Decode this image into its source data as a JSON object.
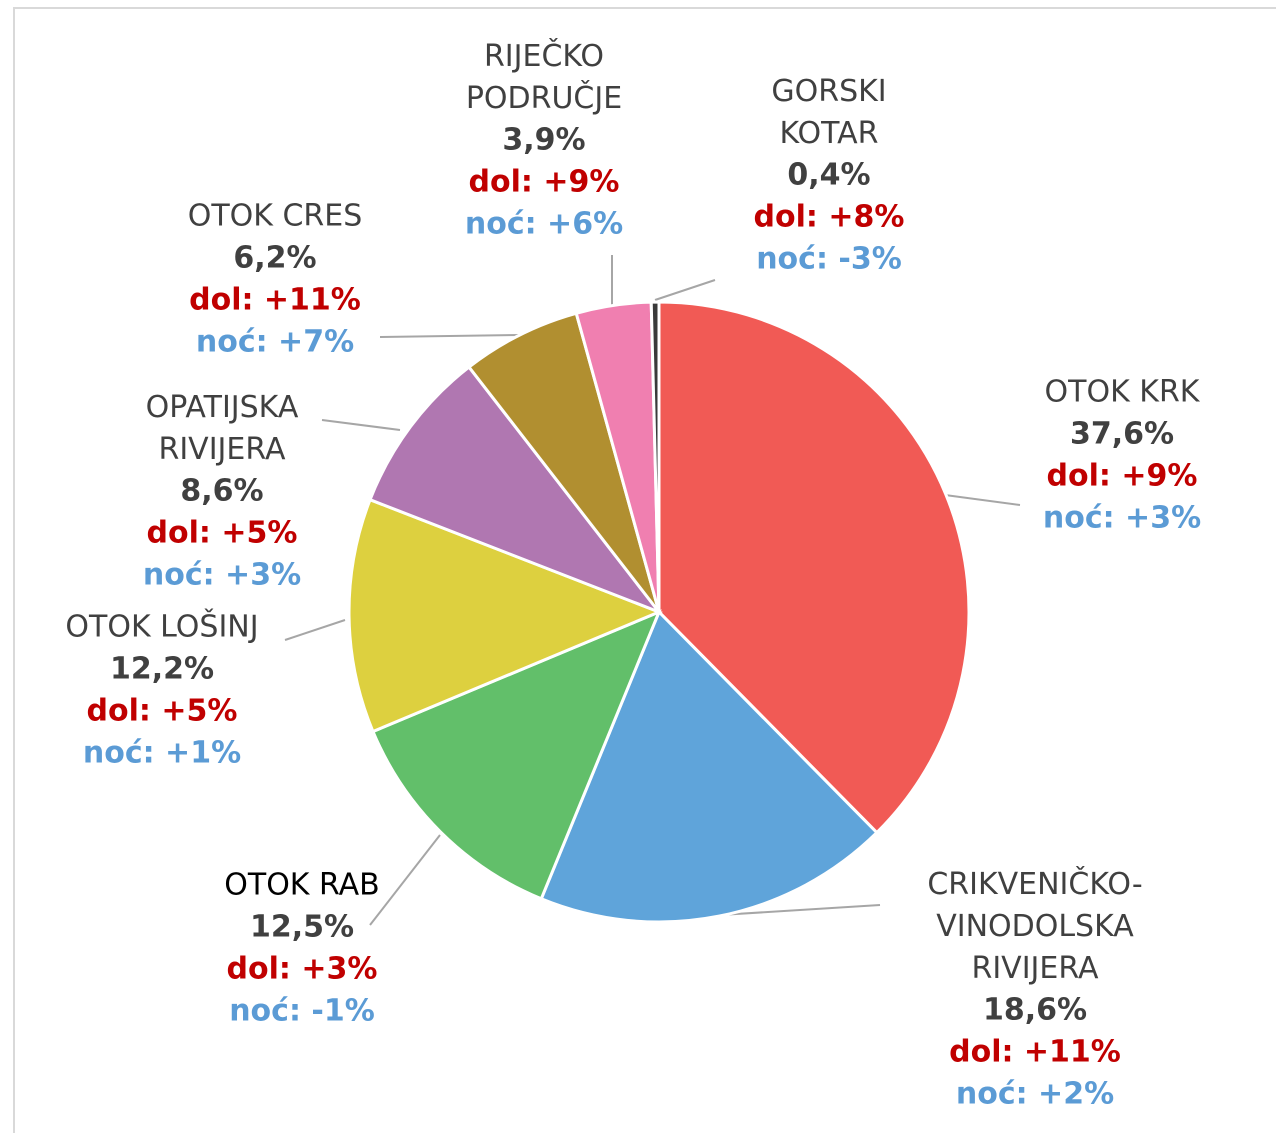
{
  "chart_data": {
    "type": "pie",
    "categories": [
      "OTOK KRK",
      "CRIKVENIČKO-\nVINODOLSKA\nRIVIJERA",
      "OTOK RAB",
      "OTOK LOŠINJ",
      "OPATIJSKA\nRIVIJERA",
      "OTOK CRES",
      "RIJEČKO\nPODRUČJE",
      "GORSKI\nKOTAR"
    ],
    "values": [
      37.6,
      18.6,
      12.5,
      12.2,
      8.6,
      6.2,
      3.9,
      0.4
    ],
    "value_labels": [
      "37,6%",
      "18,6%",
      "12,5%",
      "12,2%",
      "8,6%",
      "6,2%",
      "3,9%",
      "0,4%"
    ],
    "dol_labels": [
      "dol: +9%",
      "dol: +11%",
      "dol: +3%",
      "dol: +5%",
      "dol: +5%",
      "dol: +11%",
      "dol: +9%",
      "dol: +8%"
    ],
    "noc_labels": [
      "noć: +3%",
      "noć: +2%",
      "noć: -1%",
      "noć: +1%",
      "noć: +3%",
      "noć: +7%",
      "noć: +6%",
      "noć: -3%"
    ],
    "colors": [
      "#f15a55",
      "#5fa4da",
      "#62bf6a",
      "#ddd03f",
      "#b077b1",
      "#b18f30",
      "#f07fb0",
      "#3a3a3a"
    ]
  }
}
